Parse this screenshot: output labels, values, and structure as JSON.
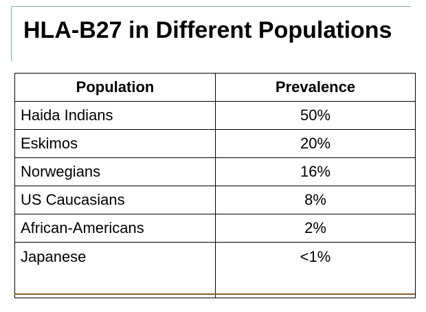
{
  "title": "HLA-B27 in Different Populations",
  "table": {
    "headers": [
      "Population",
      "Prevalence"
    ],
    "rows": [
      [
        "Haida Indians",
        "50%"
      ],
      [
        "Eskimos",
        "20%"
      ],
      [
        "Norwegians",
        "16%"
      ],
      [
        "US Caucasians",
        "8%"
      ],
      [
        "African-Americans",
        "2%"
      ],
      [
        "Japanese",
        "<1%"
      ]
    ]
  }
}
